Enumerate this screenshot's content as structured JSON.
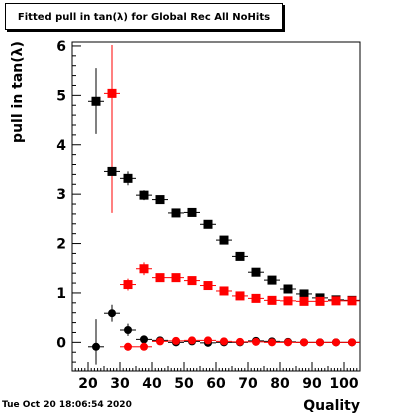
{
  "chart_data": {
    "type": "scatter",
    "title": "Fitted pull in tan(λ) for Global Rec All NoHits",
    "xlabel": "Quality",
    "ylabel": "pull in tan(λ)",
    "xlim": [
      15,
      105
    ],
    "ylim": [
      -0.58,
      6.08
    ],
    "x_ticks": [
      20,
      30,
      40,
      50,
      60,
      70,
      80,
      90,
      100
    ],
    "y_ticks": [
      0,
      1,
      2,
      3,
      4,
      5,
      6
    ],
    "grid": false,
    "series": [
      {
        "marker": "square",
        "color": "#000000",
        "points": [
          {
            "x": 22.5,
            "y": 4.88,
            "ylo": 4.22,
            "yhi": 5.55
          },
          {
            "x": 27.5,
            "y": 3.46,
            "ylo": 3.35,
            "yhi": 3.57
          },
          {
            "x": 32.5,
            "y": 3.32,
            "ylo": 3.18,
            "yhi": 3.46
          },
          {
            "x": 37.5,
            "y": 2.98,
            "ylo": 2.88,
            "yhi": 3.08
          },
          {
            "x": 42.5,
            "y": 2.89,
            "ylo": 2.81,
            "yhi": 2.97
          },
          {
            "x": 47.5,
            "y": 2.62,
            "ylo": 2.56,
            "yhi": 2.68
          },
          {
            "x": 52.5,
            "y": 2.63,
            "ylo": 2.57,
            "yhi": 2.69
          },
          {
            "x": 57.5,
            "y": 2.39,
            "ylo": 2.34,
            "yhi": 2.44
          },
          {
            "x": 62.5,
            "y": 2.07,
            "ylo": 2.02,
            "yhi": 2.12
          },
          {
            "x": 67.5,
            "y": 1.74,
            "ylo": 1.7,
            "yhi": 1.78
          },
          {
            "x": 72.5,
            "y": 1.42,
            "ylo": 1.38,
            "yhi": 1.46
          },
          {
            "x": 77.5,
            "y": 1.26,
            "ylo": 1.22,
            "yhi": 1.3
          },
          {
            "x": 82.5,
            "y": 1.08,
            "ylo": 1.05,
            "yhi": 1.11
          },
          {
            "x": 87.5,
            "y": 0.98,
            "ylo": 0.95,
            "yhi": 1.01
          },
          {
            "x": 92.5,
            "y": 0.9,
            "ylo": 0.87,
            "yhi": 0.93
          },
          {
            "x": 97.5,
            "y": 0.86,
            "ylo": 0.83,
            "yhi": 0.89
          },
          {
            "x": 102.5,
            "y": 0.85,
            "ylo": 0.82,
            "yhi": 0.88
          }
        ]
      },
      {
        "marker": "square",
        "color": "#ff0000",
        "points": [
          {
            "x": 27.5,
            "y": 5.04,
            "ylo": 2.62,
            "yhi": 6.02
          },
          {
            "x": 32.5,
            "y": 1.17,
            "ylo": 1.05,
            "yhi": 1.29
          },
          {
            "x": 37.5,
            "y": 1.49,
            "ylo": 1.36,
            "yhi": 1.62
          },
          {
            "x": 42.5,
            "y": 1.31,
            "ylo": 1.23,
            "yhi": 1.39
          },
          {
            "x": 47.5,
            "y": 1.31,
            "ylo": 1.25,
            "yhi": 1.37
          },
          {
            "x": 52.5,
            "y": 1.25,
            "ylo": 1.2,
            "yhi": 1.3
          },
          {
            "x": 57.5,
            "y": 1.15,
            "ylo": 1.11,
            "yhi": 1.19
          },
          {
            "x": 62.5,
            "y": 1.04,
            "ylo": 1.0,
            "yhi": 1.08
          },
          {
            "x": 67.5,
            "y": 0.94,
            "ylo": 0.9,
            "yhi": 0.98
          },
          {
            "x": 72.5,
            "y": 0.89,
            "ylo": 0.86,
            "yhi": 0.92
          },
          {
            "x": 77.5,
            "y": 0.85,
            "ylo": 0.82,
            "yhi": 0.88
          },
          {
            "x": 82.5,
            "y": 0.84,
            "ylo": 0.81,
            "yhi": 0.87
          },
          {
            "x": 87.5,
            "y": 0.83,
            "ylo": 0.8,
            "yhi": 0.86
          },
          {
            "x": 92.5,
            "y": 0.83,
            "ylo": 0.8,
            "yhi": 0.86
          },
          {
            "x": 97.5,
            "y": 0.84,
            "ylo": 0.81,
            "yhi": 0.87
          },
          {
            "x": 102.5,
            "y": 0.84,
            "ylo": 0.81,
            "yhi": 0.87
          }
        ]
      },
      {
        "marker": "circle",
        "color": "#000000",
        "points": [
          {
            "x": 22.5,
            "y": -0.09,
            "ylo": -0.45,
            "yhi": 0.47
          },
          {
            "x": 27.5,
            "y": 0.59,
            "ylo": 0.42,
            "yhi": 0.76
          },
          {
            "x": 32.5,
            "y": 0.25,
            "ylo": 0.13,
            "yhi": 0.38
          },
          {
            "x": 37.5,
            "y": 0.06,
            "ylo": -0.02,
            "yhi": 0.14
          },
          {
            "x": 42.5,
            "y": 0.04,
            "ylo": -0.02,
            "yhi": 0.1
          },
          {
            "x": 47.5,
            "y": 0.0,
            "ylo": -0.04,
            "yhi": 0.04
          },
          {
            "x": 52.5,
            "y": 0.02,
            "ylo": -0.02,
            "yhi": 0.06
          },
          {
            "x": 57.5,
            "y": -0.01,
            "ylo": -0.05,
            "yhi": 0.03
          },
          {
            "x": 62.5,
            "y": 0.0,
            "ylo": -0.03,
            "yhi": 0.03
          },
          {
            "x": 67.5,
            "y": 0.0,
            "ylo": -0.03,
            "yhi": 0.03
          },
          {
            "x": 72.5,
            "y": 0.03,
            "ylo": 0.0,
            "yhi": 0.06
          },
          {
            "x": 77.5,
            "y": 0.02,
            "ylo": -0.01,
            "yhi": 0.05
          },
          {
            "x": 82.5,
            "y": 0.01,
            "ylo": -0.02,
            "yhi": 0.04
          },
          {
            "x": 87.5,
            "y": 0.0,
            "ylo": -0.03,
            "yhi": 0.03
          },
          {
            "x": 92.5,
            "y": 0.0,
            "ylo": -0.03,
            "yhi": 0.03
          },
          {
            "x": 97.5,
            "y": 0.0,
            "ylo": -0.03,
            "yhi": 0.03
          },
          {
            "x": 102.5,
            "y": 0.0,
            "ylo": -0.03,
            "yhi": 0.03
          }
        ]
      },
      {
        "marker": "circle",
        "color": "#ff0000",
        "points": [
          {
            "x": 32.5,
            "y": -0.09,
            "ylo": -0.17,
            "yhi": -0.01
          },
          {
            "x": 37.5,
            "y": -0.09,
            "ylo": -0.16,
            "yhi": -0.02
          },
          {
            "x": 42.5,
            "y": 0.02,
            "ylo": -0.03,
            "yhi": 0.07
          },
          {
            "x": 47.5,
            "y": 0.03,
            "ylo": -0.01,
            "yhi": 0.07
          },
          {
            "x": 52.5,
            "y": 0.04,
            "ylo": 0.0,
            "yhi": 0.08
          },
          {
            "x": 57.5,
            "y": 0.04,
            "ylo": 0.01,
            "yhi": 0.07
          },
          {
            "x": 62.5,
            "y": 0.02,
            "ylo": -0.01,
            "yhi": 0.05
          },
          {
            "x": 67.5,
            "y": 0.01,
            "ylo": -0.02,
            "yhi": 0.04
          },
          {
            "x": 72.5,
            "y": 0.01,
            "ylo": -0.02,
            "yhi": 0.04
          },
          {
            "x": 77.5,
            "y": 0.0,
            "ylo": -0.03,
            "yhi": 0.03
          },
          {
            "x": 82.5,
            "y": 0.0,
            "ylo": -0.03,
            "yhi": 0.03
          },
          {
            "x": 87.5,
            "y": 0.0,
            "ylo": -0.03,
            "yhi": 0.03
          },
          {
            "x": 92.5,
            "y": 0.0,
            "ylo": -0.03,
            "yhi": 0.03
          },
          {
            "x": 97.5,
            "y": 0.0,
            "ylo": -0.03,
            "yhi": 0.03
          },
          {
            "x": 102.5,
            "y": 0.0,
            "ylo": -0.03,
            "yhi": 0.03
          }
        ]
      }
    ]
  },
  "footer": {
    "date_stamp": "Tue Oct 20 18:06:54 2020"
  }
}
